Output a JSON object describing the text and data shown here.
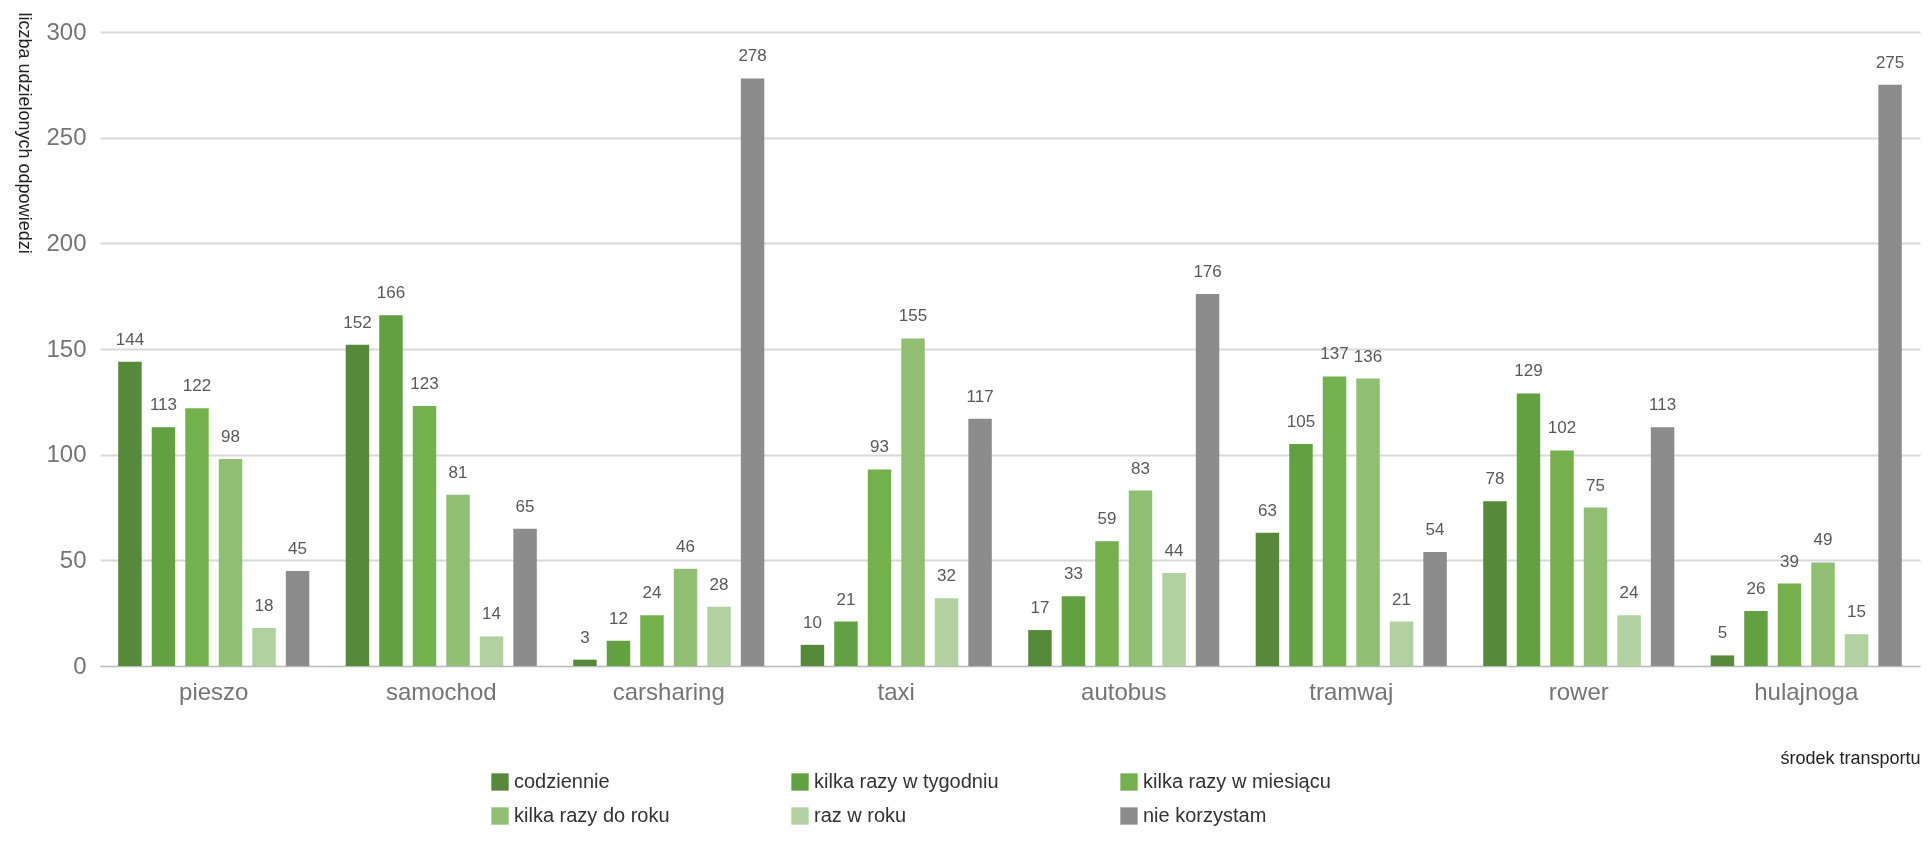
{
  "chart_data": {
    "type": "bar",
    "ylabel": "liczba udzielonych odpowiedzi",
    "xlabel": "środek transportu",
    "categories": [
      "pieszo",
      "samochod",
      "carsharing",
      "taxi",
      "autobus",
      "tramwaj",
      "rower",
      "hulajnoga"
    ],
    "series": [
      {
        "name": "codziennie",
        "color": "#568a3a",
        "values": [
          144,
          152,
          3,
          10,
          17,
          63,
          78,
          5
        ]
      },
      {
        "name": "kilka razy w tygodniu",
        "color": "#62a042",
        "values": [
          113,
          166,
          12,
          21,
          33,
          105,
          129,
          26
        ]
      },
      {
        "name": "kilka razy w miesiącu",
        "color": "#74b04c",
        "values": [
          122,
          123,
          24,
          93,
          59,
          137,
          102,
          39
        ]
      },
      {
        "name": "kilka razy do roku",
        "color": "#90bf74",
        "values": [
          98,
          81,
          46,
          155,
          83,
          136,
          75,
          49
        ]
      },
      {
        "name": "raz w roku",
        "color": "#b2d1a0",
        "values": [
          18,
          14,
          28,
          32,
          44,
          21,
          24,
          15
        ]
      },
      {
        "name": "nie korzystam",
        "color": "#8c8c8c",
        "values": [
          45,
          65,
          278,
          117,
          176,
          54,
          113,
          275
        ]
      }
    ],
    "ylim": [
      0,
      300
    ],
    "yticks": [
      0,
      50,
      100,
      150,
      200,
      250,
      300
    ],
    "grid": "y",
    "legend": "bottom",
    "data_labels": true
  }
}
